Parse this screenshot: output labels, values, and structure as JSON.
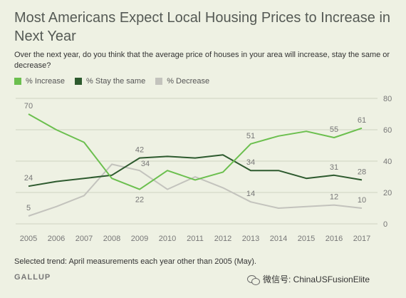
{
  "title": "Most Americans Expect Local Housing Prices to Increase in Next Year",
  "subtitle": "Over the next year, do you think that the average price of houses in your area will increase, stay the same or decrease?",
  "footnote": "Selected trend: April measurements each year other than 2005 (May).",
  "source": "GALLUP",
  "watermark": "微信号: ChinaUSFusionElite",
  "colors": {
    "increase": "#6bbf4e",
    "stay": "#2d5a2e",
    "decrease": "#c3c3bd",
    "grid": "#cfd4c2",
    "axis_text": "#777777",
    "label_text": "#777777"
  },
  "chart_data": {
    "type": "line",
    "x": [
      2005,
      2006,
      2007,
      2008,
      2009,
      2010,
      2011,
      2012,
      2013,
      2014,
      2015,
      2016,
      2017
    ],
    "ylim": [
      0,
      80
    ],
    "yticks": [
      0,
      20,
      40,
      60,
      80
    ],
    "grid": true,
    "legend_position": "top-left",
    "series": [
      {
        "key": "increase",
        "name": "% Increase",
        "values": [
          70,
          60,
          52,
          29,
          22,
          34,
          28,
          33,
          51,
          56,
          59,
          55,
          61
        ],
        "labels": {
          "2005": "70",
          "2009": "22",
          "2013": "51",
          "2016": "55",
          "2017": "61"
        }
      },
      {
        "key": "stay",
        "name": "% Stay the same",
        "values": [
          24,
          27,
          29,
          31,
          42,
          43,
          42,
          44,
          34,
          34,
          29,
          31,
          28
        ],
        "labels": {
          "2005": "24",
          "2009": "42",
          "2013": "34",
          "2016": "31",
          "2017": "28"
        }
      },
      {
        "key": "decrease",
        "name": "% Decrease",
        "values": [
          5,
          11,
          18,
          38,
          34,
          22,
          30,
          23,
          14,
          10,
          11,
          12,
          10
        ],
        "labels": {
          "2005": "5",
          "2009": "34",
          "2013": "14",
          "2016": "12",
          "2017": "10"
        }
      }
    ]
  }
}
